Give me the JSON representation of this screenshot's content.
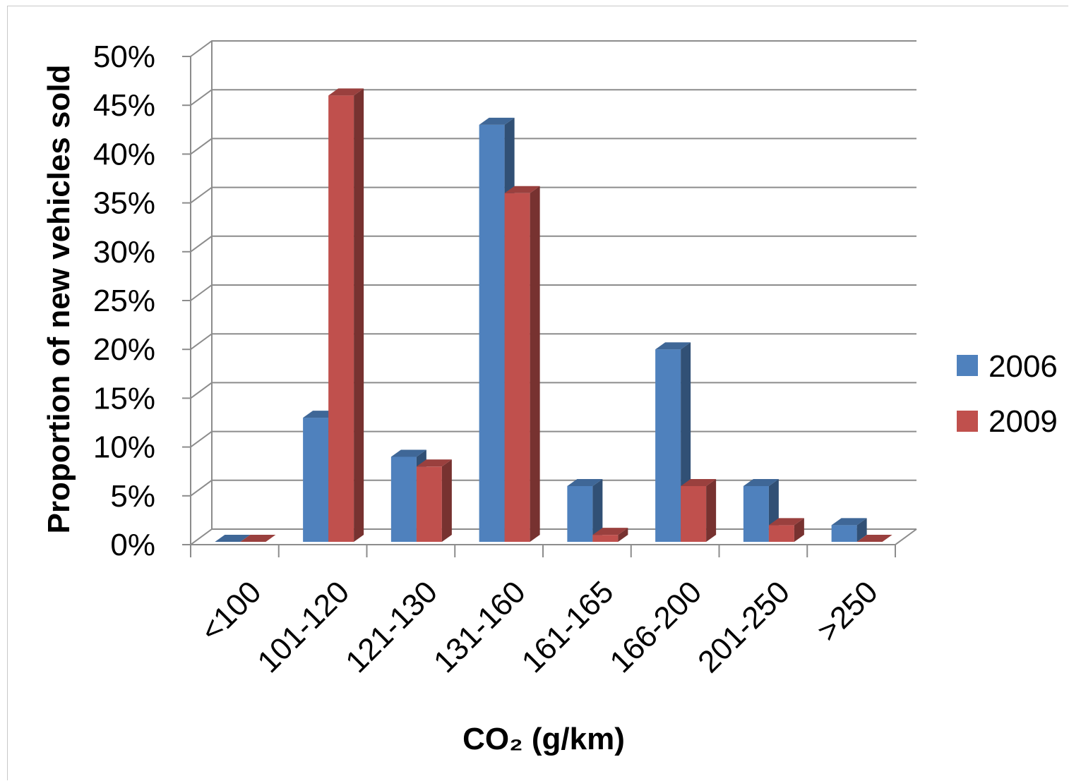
{
  "chart_data": {
    "type": "bar",
    "variant": "3d-clustered-column",
    "categories": [
      "<100",
      "101-120",
      "121-130",
      "131-160",
      "161-165",
      "166-200",
      "201-250",
      ">250"
    ],
    "series": [
      {
        "name": "2006",
        "color": "#4f81bd",
        "values": [
          0,
          13,
          9,
          43,
          6,
          20,
          6,
          2
        ]
      },
      {
        "name": "2009",
        "color": "#c0504d",
        "values": [
          0,
          46,
          8,
          36,
          1,
          6,
          2,
          0
        ]
      }
    ],
    "ylabel": "Proportion of new vehicles sold",
    "xlabel": "CO₂ (g/km)",
    "ylim": [
      0,
      50
    ],
    "yticks": [
      "0%",
      "5%",
      "10%",
      "15%",
      "20%",
      "25%",
      "30%",
      "35%",
      "40%",
      "45%",
      "50%"
    ],
    "grid": true,
    "legend_position": "right"
  }
}
